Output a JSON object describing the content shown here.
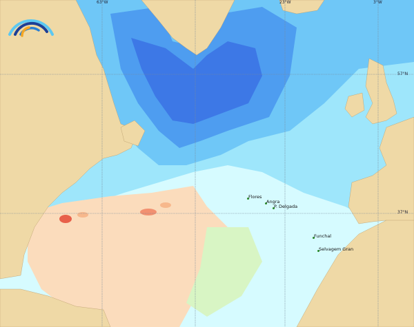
{
  "map": {
    "colors": {
      "land": "#efd9a6",
      "ocean_light": "#d6fbff",
      "ocean_mid": "#9ee6fb",
      "ocean_blue": "#6fc7f7",
      "ocean_deep": "#4e9df0",
      "ocean_deepest": "#3d78e6",
      "warm": "#fbdcbc",
      "warmer": "#f7b88c",
      "hot": "#e8604a",
      "green": "#d8f5c4"
    },
    "grid": {
      "lon_labels": [
        "63°W",
        "23°W",
        "3°W"
      ],
      "lat_labels": [
        "57°N",
        "37°N"
      ]
    },
    "places": [
      {
        "name": "Flores"
      },
      {
        "name": "Angra"
      },
      {
        "name": "P. Delgada"
      },
      {
        "name": "Funchal"
      },
      {
        "name": "Selvagem Gran"
      }
    ],
    "logo": {
      "icon": "wave-arcs-logo"
    }
  }
}
